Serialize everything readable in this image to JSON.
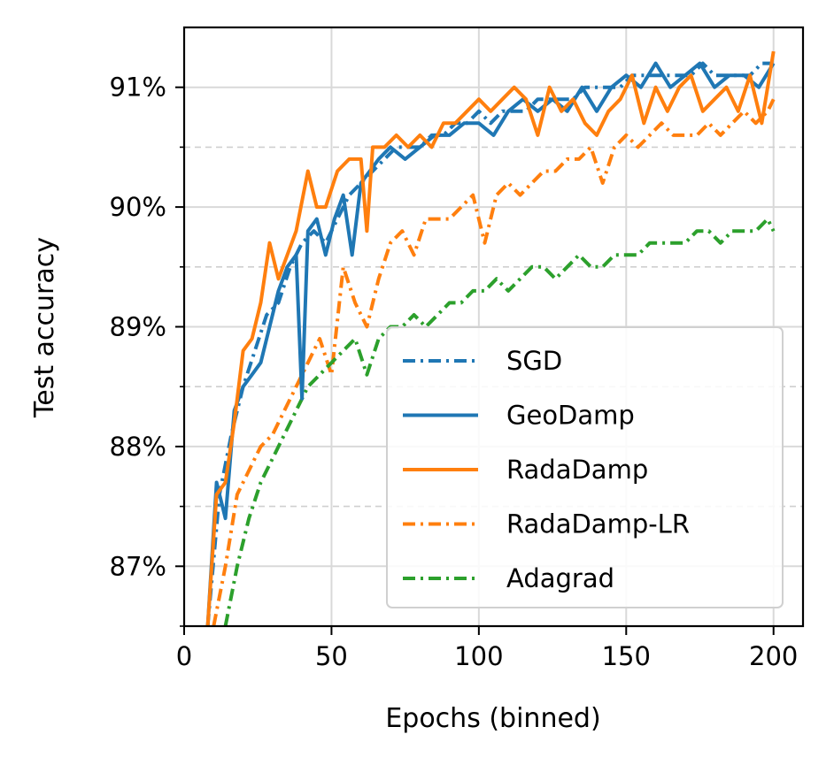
{
  "chart_data": {
    "type": "line",
    "xlabel": "Epochs (binned)",
    "ylabel": "Test accuracy",
    "xlim": [
      0,
      210
    ],
    "ylim": [
      86.5,
      91.5
    ],
    "xticks": [
      0,
      50,
      100,
      150,
      200
    ],
    "xtick_labels": [
      "0",
      "50",
      "100",
      "150",
      "200"
    ],
    "yticks": [
      87,
      88,
      89,
      90,
      91
    ],
    "ytick_labels": [
      "87%",
      "88%",
      "89%",
      "90%",
      "91%"
    ],
    "yminor": [
      86.5,
      87.5,
      88.5,
      89.5,
      90.5
    ],
    "grid": true,
    "legend_position": "lower-right",
    "series": [
      {
        "name": "SGD",
        "color": "#1f77b4",
        "dash": "dashdot",
        "x": [
          8,
          12,
          16,
          20,
          24,
          28,
          32,
          36,
          40,
          44,
          48,
          52,
          56,
          60,
          64,
          68,
          72,
          76,
          80,
          84,
          88,
          92,
          96,
          100,
          104,
          108,
          112,
          116,
          120,
          124,
          128,
          132,
          136,
          140,
          144,
          148,
          152,
          156,
          160,
          164,
          168,
          172,
          176,
          180,
          184,
          188,
          192,
          196,
          200
        ],
        "y": [
          86.5,
          87.6,
          88.1,
          88.5,
          88.8,
          89.1,
          89.2,
          89.5,
          89.7,
          89.8,
          89.7,
          89.9,
          90.1,
          90.2,
          90.3,
          90.4,
          90.5,
          90.5,
          90.5,
          90.6,
          90.6,
          90.7,
          90.7,
          90.8,
          90.7,
          90.8,
          90.8,
          90.8,
          90.9,
          90.9,
          90.9,
          90.9,
          91.0,
          91.0,
          91.0,
          91.0,
          91.1,
          91.1,
          91.1,
          91.1,
          91.1,
          91.1,
          91.2,
          91.1,
          91.1,
          91.1,
          91.1,
          91.2,
          91.2
        ]
      },
      {
        "name": "GeoDamp",
        "color": "#1f77b4",
        "dash": "solid",
        "x": [
          8,
          11,
          14,
          17,
          20,
          23,
          26,
          29,
          32,
          35,
          38,
          40,
          42,
          45,
          48,
          51,
          54,
          57,
          60,
          63,
          66,
          70,
          75,
          80,
          85,
          90,
          95,
          100,
          105,
          110,
          115,
          120,
          125,
          130,
          135,
          140,
          145,
          150,
          155,
          160,
          165,
          170,
          175,
          180,
          185,
          190,
          195,
          200
        ],
        "y": [
          86.5,
          87.7,
          87.4,
          88.3,
          88.5,
          88.6,
          88.7,
          89.0,
          89.3,
          89.5,
          89.6,
          88.4,
          89.8,
          89.9,
          89.6,
          89.9,
          90.1,
          89.6,
          90.2,
          90.3,
          90.4,
          90.5,
          90.4,
          90.5,
          90.6,
          90.6,
          90.7,
          90.7,
          90.6,
          90.8,
          90.9,
          90.8,
          90.9,
          90.8,
          91.0,
          90.8,
          91.0,
          91.1,
          91.0,
          91.2,
          91.0,
          91.1,
          91.2,
          91.0,
          91.1,
          91.1,
          91.0,
          91.2
        ]
      },
      {
        "name": "RadaDamp",
        "color": "#ff7f0e",
        "dash": "solid",
        "x": [
          8,
          11,
          14,
          17,
          20,
          23,
          26,
          29,
          32,
          35,
          38,
          42,
          45,
          48,
          52,
          56,
          60,
          62,
          64,
          68,
          72,
          76,
          80,
          84,
          88,
          92,
          96,
          100,
          104,
          108,
          112,
          116,
          120,
          124,
          128,
          132,
          136,
          140,
          144,
          148,
          152,
          156,
          160,
          164,
          168,
          172,
          176,
          180,
          184,
          188,
          192,
          196,
          200
        ],
        "y": [
          86.5,
          87.6,
          87.7,
          88.2,
          88.8,
          88.9,
          89.2,
          89.7,
          89.4,
          89.6,
          89.8,
          90.3,
          90.0,
          90.0,
          90.3,
          90.4,
          90.4,
          89.8,
          90.5,
          90.5,
          90.6,
          90.5,
          90.6,
          90.5,
          90.7,
          90.7,
          90.8,
          90.9,
          90.8,
          90.9,
          91.0,
          90.9,
          90.6,
          91.0,
          90.8,
          90.9,
          90.7,
          90.6,
          90.8,
          90.9,
          91.1,
          90.7,
          91.0,
          90.8,
          91.0,
          91.1,
          90.8,
          90.9,
          91.0,
          90.8,
          91.1,
          90.7,
          91.3
        ]
      },
      {
        "name": "RadaDamp-LR",
        "color": "#ff7f0e",
        "dash": "dashdot",
        "x": [
          10,
          14,
          18,
          22,
          26,
          30,
          34,
          38,
          42,
          46,
          50,
          54,
          58,
          62,
          66,
          70,
          74,
          78,
          82,
          86,
          90,
          94,
          98,
          102,
          106,
          110,
          114,
          118,
          122,
          126,
          130,
          134,
          138,
          142,
          146,
          150,
          154,
          158,
          162,
          166,
          170,
          174,
          178,
          182,
          186,
          190,
          194,
          198,
          200
        ],
        "y": [
          86.5,
          87.0,
          87.6,
          87.8,
          88.0,
          88.1,
          88.3,
          88.5,
          88.7,
          88.9,
          88.6,
          89.5,
          89.2,
          89.0,
          89.4,
          89.7,
          89.8,
          89.6,
          89.9,
          89.9,
          89.9,
          90.0,
          90.1,
          89.7,
          90.1,
          90.2,
          90.1,
          90.2,
          90.3,
          90.3,
          90.4,
          90.4,
          90.5,
          90.2,
          90.5,
          90.6,
          90.5,
          90.6,
          90.7,
          90.6,
          90.6,
          90.6,
          90.7,
          90.6,
          90.7,
          90.8,
          90.7,
          90.8,
          90.9
        ]
      },
      {
        "name": "Adagrad",
        "color": "#2ca02c",
        "dash": "dashdot",
        "x": [
          14,
          18,
          22,
          26,
          30,
          34,
          38,
          42,
          46,
          50,
          54,
          58,
          62,
          66,
          70,
          74,
          78,
          82,
          86,
          90,
          94,
          98,
          102,
          106,
          110,
          114,
          118,
          122,
          126,
          130,
          134,
          138,
          142,
          146,
          150,
          154,
          158,
          162,
          166,
          170,
          174,
          178,
          182,
          186,
          190,
          194,
          198,
          200
        ],
        "y": [
          86.5,
          87.0,
          87.4,
          87.7,
          87.9,
          88.1,
          88.3,
          88.5,
          88.6,
          88.7,
          88.8,
          88.9,
          88.6,
          88.9,
          89.0,
          89.0,
          89.1,
          89.0,
          89.1,
          89.2,
          89.2,
          89.3,
          89.3,
          89.4,
          89.3,
          89.4,
          89.5,
          89.5,
          89.4,
          89.5,
          89.6,
          89.5,
          89.5,
          89.6,
          89.6,
          89.6,
          89.7,
          89.7,
          89.7,
          89.7,
          89.8,
          89.8,
          89.7,
          89.8,
          89.8,
          89.8,
          89.9,
          89.8
        ]
      }
    ]
  }
}
